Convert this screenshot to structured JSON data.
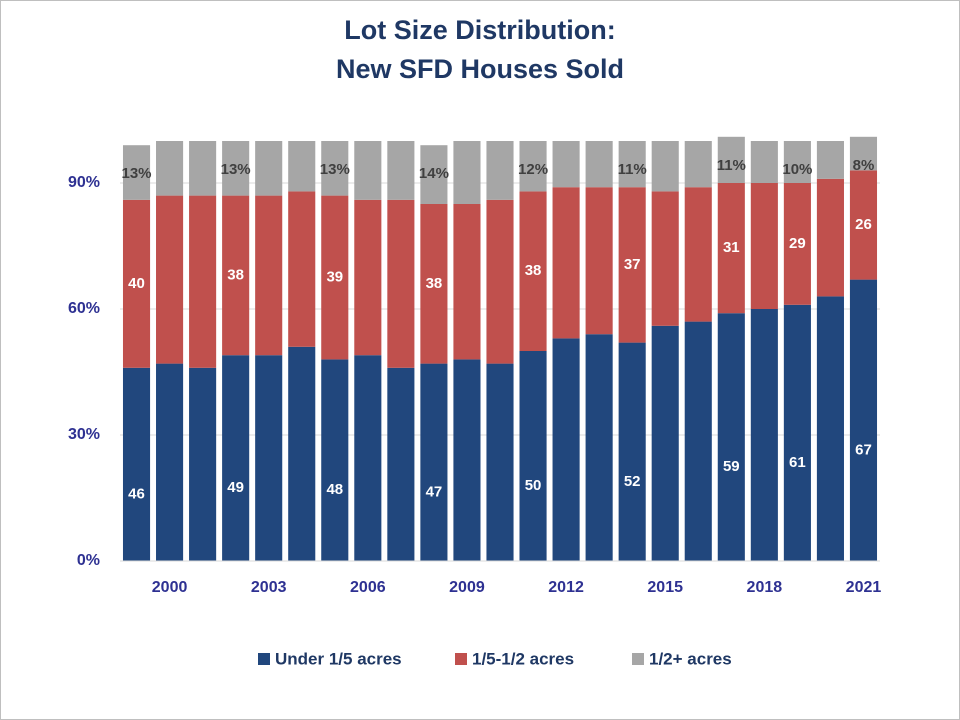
{
  "chart_data": {
    "type": "stacked_bar",
    "title": [
      "Lot Size Distribution:",
      "New SFD Houses Sold"
    ],
    "categories": [
      null,
      "2000",
      null,
      null,
      "2003",
      null,
      null,
      "2006",
      null,
      null,
      "2009",
      null,
      null,
      "2012",
      null,
      null,
      "2015",
      null,
      null,
      "2018",
      null,
      null,
      "2021"
    ],
    "series": [
      {
        "name": "Under 1/5 acres",
        "color": "#21477d",
        "values": [
          46,
          47,
          46,
          49,
          49,
          51,
          48,
          49,
          46,
          47,
          48,
          47,
          50,
          53,
          54,
          52,
          56,
          57,
          59,
          60,
          61,
          63,
          67
        ],
        "value_labels": [
          "46",
          null,
          null,
          "49",
          null,
          null,
          "48",
          null,
          null,
          "47",
          null,
          null,
          "50",
          null,
          null,
          "52",
          null,
          null,
          "59",
          null,
          "61",
          null,
          "67"
        ]
      },
      {
        "name": "1/5-1/2 acres",
        "color": "#c0504d",
        "values": [
          40,
          40,
          41,
          38,
          38,
          37,
          39,
          37,
          40,
          38,
          37,
          39,
          38,
          36,
          35,
          37,
          32,
          32,
          31,
          30,
          29,
          28,
          26
        ],
        "value_labels": [
          "40",
          null,
          null,
          "38",
          null,
          null,
          "39",
          null,
          null,
          "38",
          null,
          null,
          "38",
          null,
          null,
          "37",
          null,
          null,
          "31",
          null,
          "29",
          null,
          "26"
        ]
      },
      {
        "name": "1/2+ acres",
        "color": "#a6a6a6",
        "values": [
          13,
          13,
          13,
          13,
          13,
          12,
          13,
          14,
          14,
          14,
          15,
          14,
          12,
          11,
          11,
          11,
          12,
          11,
          11,
          10,
          10,
          9,
          8
        ],
        "value_labels": [
          "13%",
          null,
          null,
          "13%",
          null,
          null,
          "13%",
          null,
          null,
          "14%",
          null,
          null,
          "12%",
          null,
          null,
          "11%",
          null,
          null,
          "11%",
          null,
          "10%",
          null,
          "8%"
        ]
      }
    ],
    "ylim": [
      0,
      100
    ],
    "yticks": [
      {
        "value": 0,
        "label": "0%"
      },
      {
        "value": 30,
        "label": "30%"
      },
      {
        "value": 60,
        "label": "60%"
      },
      {
        "value": 90,
        "label": "90%"
      }
    ],
    "grid": true,
    "legend": "bottom"
  }
}
